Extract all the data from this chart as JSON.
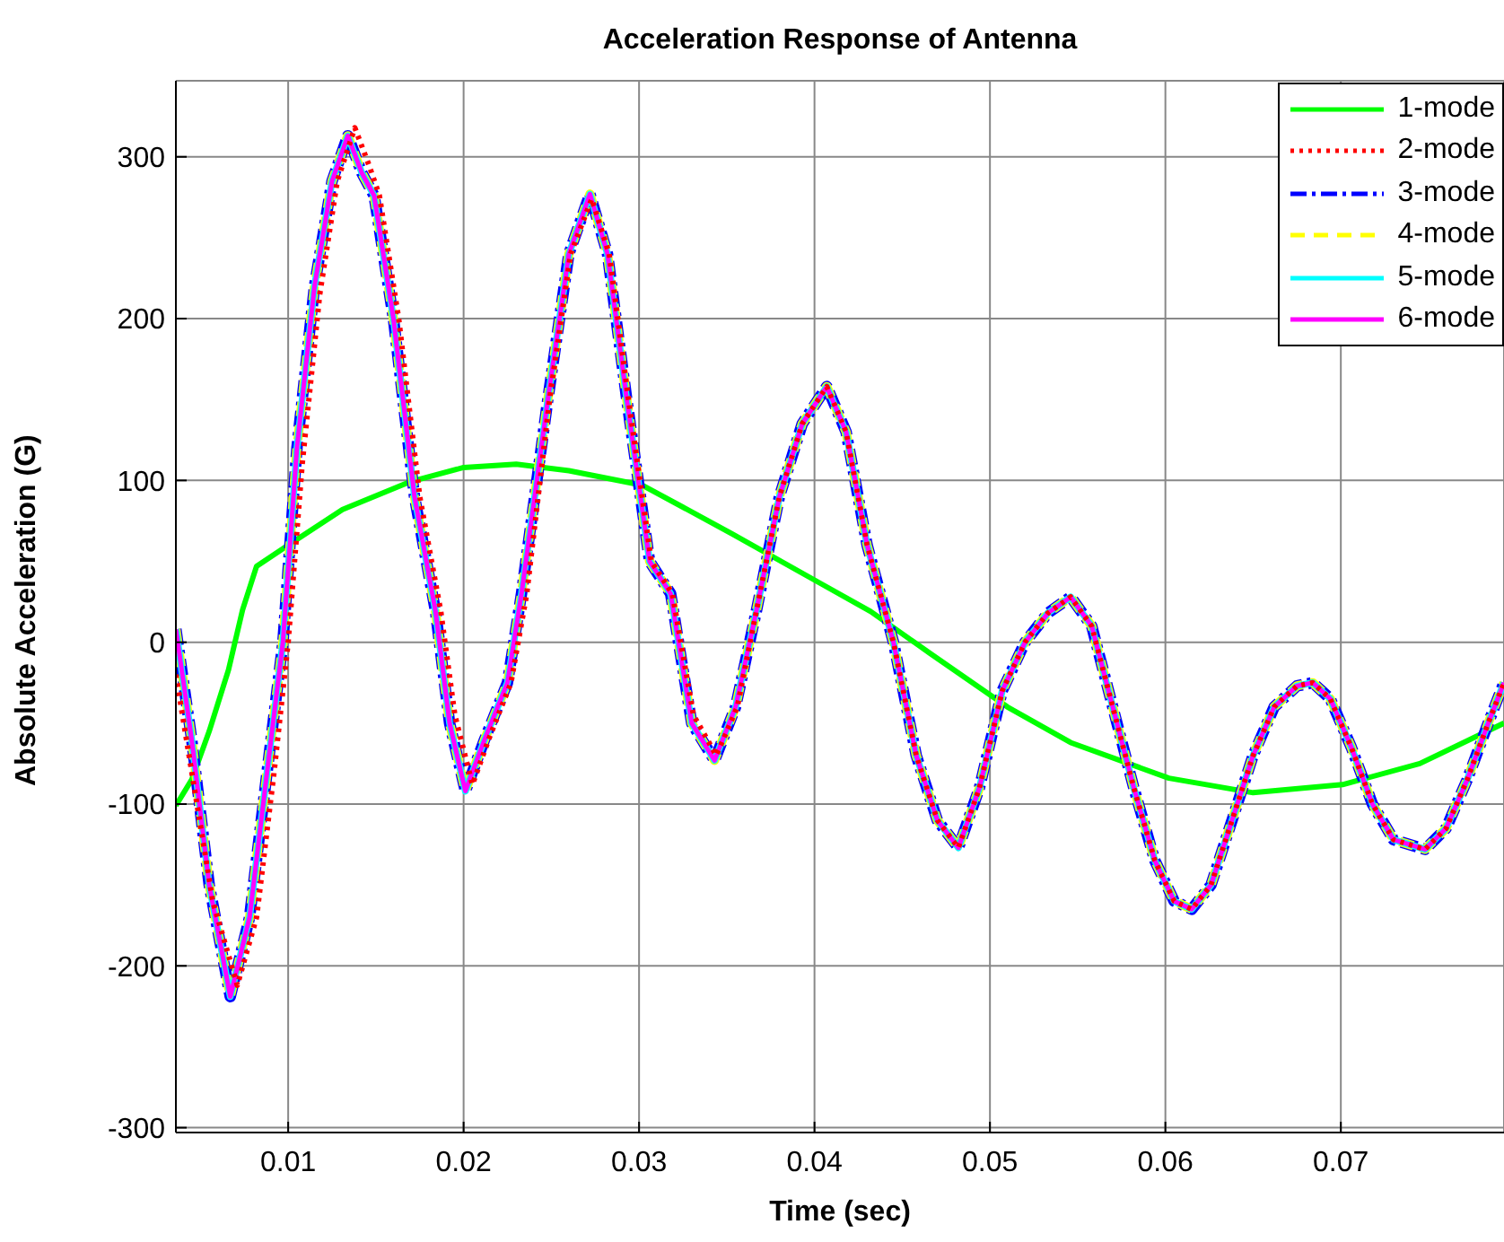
{
  "chart_data": {
    "type": "line",
    "title": "Acceleration Response of Antenna",
    "xlabel": "Time (sec)",
    "ylabel": "Absolute Acceleration (G)",
    "xlim": [
      0.0036,
      0.0793
    ],
    "xticks": [
      0.01,
      0.02,
      0.03,
      0.04,
      0.05,
      0.06,
      0.07
    ],
    "ylim": [
      -303,
      347
    ],
    "yticks": [
      -300,
      -200,
      -100,
      0,
      100,
      200,
      300
    ],
    "grid": true,
    "legend": "top right",
    "marker": "none",
    "series": [
      {
        "name": "1-mode",
        "color": "#00ff00",
        "line_style": "solid",
        "x": [
          0.0036,
          0.0045,
          0.0055,
          0.0066,
          0.0074,
          0.0082,
          0.01,
          0.0131,
          0.0169,
          0.02,
          0.023,
          0.026,
          0.0302,
          0.0353,
          0.0404,
          0.0432,
          0.0466,
          0.051,
          0.0546,
          0.0602,
          0.065,
          0.0701,
          0.0745,
          0.0793
        ],
        "values": [
          -101,
          -85,
          -55,
          -17,
          20,
          47,
          60,
          82,
          99,
          108,
          110,
          106,
          97,
          67,
          36,
          19,
          -7,
          -40,
          -62,
          -84,
          -93,
          -88,
          -75,
          -50
        ]
      },
      {
        "name": "2-mode",
        "color": "#ff0000",
        "line_style": "dotted",
        "x": [
          0.0036,
          0.0045,
          0.0057,
          0.0071,
          0.0082,
          0.0092,
          0.01,
          0.0108,
          0.0118,
          0.0128,
          0.0138,
          0.0146,
          0.0152,
          0.0163,
          0.0175,
          0.0187,
          0.0195,
          0.0205,
          0.0215,
          0.0227,
          0.0236,
          0.0249,
          0.0261,
          0.0273,
          0.0283,
          0.0294,
          0.0307,
          0.0319,
          0.0331,
          0.0344,
          0.0356,
          0.0367,
          0.038,
          0.0393,
          0.0407,
          0.0418,
          0.043,
          0.0445,
          0.0458,
          0.047,
          0.0482,
          0.0494,
          0.0507,
          0.052,
          0.0533,
          0.0546,
          0.0558,
          0.057,
          0.0582,
          0.0594,
          0.0605,
          0.0615,
          0.0626,
          0.0638,
          0.065,
          0.0662,
          0.0675,
          0.0684,
          0.0694,
          0.0706,
          0.0718,
          0.073,
          0.0748,
          0.076,
          0.0772,
          0.0784,
          0.0793
        ],
        "values": [
          -20,
          -80,
          -160,
          -212,
          -170,
          -80,
          0,
          110,
          215,
          285,
          318,
          295,
          276,
          200,
          90,
          19,
          -45,
          -88,
          -58,
          -25,
          30,
          150,
          240,
          274,
          240,
          150,
          50,
          30,
          -45,
          -70,
          -40,
          20,
          90,
          135,
          158,
          130,
          60,
          0,
          -70,
          -110,
          -127,
          -90,
          -30,
          0,
          18,
          28,
          10,
          -40,
          -90,
          -135,
          -160,
          -165,
          -150,
          -110,
          -70,
          -40,
          -27,
          -25,
          -35,
          -65,
          -100,
          -122,
          -128,
          -115,
          -85,
          -50,
          -25
        ]
      },
      {
        "name": "3-mode",
        "color": "#0000ff",
        "line_style": "dashdot",
        "x": [
          0.0036,
          0.0045,
          0.0055,
          0.0067,
          0.0078,
          0.0088,
          0.0097,
          0.0105,
          0.0115,
          0.0125,
          0.0134,
          0.0142,
          0.0149,
          0.016,
          0.0172,
          0.0184,
          0.0192,
          0.0201,
          0.0212,
          0.0225,
          0.0233,
          0.0248,
          0.026,
          0.0272,
          0.0282,
          0.0293,
          0.0306,
          0.0318,
          0.033,
          0.0343,
          0.0355,
          0.0367,
          0.038,
          0.0393,
          0.0407,
          0.0418,
          0.043,
          0.0445,
          0.0458,
          0.047,
          0.0482,
          0.0494,
          0.0507,
          0.052,
          0.0533,
          0.0546,
          0.0558,
          0.057,
          0.0582,
          0.0594,
          0.0605,
          0.0615,
          0.0626,
          0.0638,
          0.065,
          0.0662,
          0.0675,
          0.0684,
          0.0694,
          0.0706,
          0.0718,
          0.073,
          0.0748,
          0.076,
          0.0772,
          0.0784,
          0.0793
        ],
        "values": [
          8,
          -60,
          -150,
          -219,
          -170,
          -80,
          0,
          120,
          220,
          285,
          313,
          290,
          276,
          200,
          90,
          19,
          -50,
          -92,
          -60,
          -25,
          30,
          150,
          240,
          277,
          240,
          150,
          50,
          30,
          -50,
          -73,
          -40,
          20,
          90,
          135,
          158,
          130,
          60,
          0,
          -70,
          -110,
          -127,
          -90,
          -30,
          0,
          18,
          28,
          10,
          -40,
          -90,
          -135,
          -160,
          -165,
          -150,
          -110,
          -70,
          -40,
          -27,
          -25,
          -35,
          -65,
          -100,
          -122,
          -128,
          -115,
          -85,
          -50,
          -25
        ]
      },
      {
        "name": "4-mode",
        "color": "#ffff00",
        "line_style": "dashed",
        "x": [
          0.0036,
          0.0045,
          0.0055,
          0.0067,
          0.0078,
          0.0088,
          0.0097,
          0.0105,
          0.0115,
          0.0125,
          0.0134,
          0.0142,
          0.0149,
          0.016,
          0.0172,
          0.0184,
          0.0192,
          0.0201,
          0.0212,
          0.0225,
          0.0233,
          0.0248,
          0.026,
          0.0272,
          0.0282,
          0.0293,
          0.0306,
          0.0318,
          0.033,
          0.0343,
          0.0355,
          0.0367,
          0.038,
          0.0393,
          0.0407,
          0.0418,
          0.043,
          0.0445,
          0.0458,
          0.047,
          0.0482,
          0.0494,
          0.0507,
          0.052,
          0.0533,
          0.0546,
          0.0558,
          0.057,
          0.0582,
          0.0594,
          0.0605,
          0.0615,
          0.0626,
          0.0638,
          0.065,
          0.0662,
          0.0675,
          0.0684,
          0.0694,
          0.0706,
          0.0718,
          0.073,
          0.0748,
          0.076,
          0.0772,
          0.0784,
          0.0793
        ],
        "values": [
          8,
          -60,
          -150,
          -219,
          -170,
          -80,
          0,
          120,
          220,
          285,
          313,
          290,
          276,
          200,
          90,
          19,
          -50,
          -92,
          -60,
          -25,
          30,
          150,
          240,
          277,
          240,
          150,
          50,
          30,
          -50,
          -73,
          -40,
          20,
          90,
          135,
          158,
          130,
          60,
          0,
          -70,
          -110,
          -127,
          -90,
          -30,
          0,
          18,
          28,
          10,
          -40,
          -90,
          -135,
          -160,
          -165,
          -150,
          -110,
          -70,
          -40,
          -27,
          -25,
          -35,
          -65,
          -100,
          -122,
          -128,
          -115,
          -85,
          -50,
          -25
        ]
      },
      {
        "name": "5-mode",
        "color": "#00ffff",
        "line_style": "solid",
        "x": [
          0.0036,
          0.0045,
          0.0055,
          0.0067,
          0.0078,
          0.0088,
          0.0097,
          0.0105,
          0.0115,
          0.0125,
          0.0134,
          0.0142,
          0.0149,
          0.016,
          0.0172,
          0.0184,
          0.0192,
          0.0201,
          0.0212,
          0.0225,
          0.0233,
          0.0248,
          0.026,
          0.0272,
          0.0282,
          0.0293,
          0.0306,
          0.0318,
          0.033,
          0.0343,
          0.0355,
          0.0367,
          0.038,
          0.0393,
          0.0407,
          0.0418,
          0.043,
          0.0445,
          0.0458,
          0.047,
          0.0482,
          0.0494,
          0.0507,
          0.052,
          0.0533,
          0.0546,
          0.0558,
          0.057,
          0.0582,
          0.0594,
          0.0605,
          0.0615,
          0.0626,
          0.0638,
          0.065,
          0.0662,
          0.0675,
          0.0684,
          0.0694,
          0.0706,
          0.0718,
          0.073,
          0.0748,
          0.076,
          0.0772,
          0.0784,
          0.0793
        ],
        "values": [
          8,
          -60,
          -150,
          -219,
          -170,
          -80,
          0,
          120,
          220,
          285,
          313,
          290,
          276,
          200,
          90,
          19,
          -50,
          -92,
          -60,
          -25,
          30,
          150,
          240,
          277,
          240,
          150,
          50,
          30,
          -50,
          -73,
          -40,
          20,
          90,
          135,
          158,
          130,
          60,
          0,
          -70,
          -110,
          -127,
          -90,
          -30,
          0,
          18,
          28,
          10,
          -40,
          -90,
          -135,
          -160,
          -165,
          -150,
          -110,
          -70,
          -40,
          -27,
          -25,
          -35,
          -65,
          -100,
          -122,
          -128,
          -115,
          -85,
          -50,
          -25
        ]
      },
      {
        "name": "6-mode",
        "color": "#ff00ff",
        "line_style": "solid",
        "x": [
          0.0036,
          0.0045,
          0.0055,
          0.0067,
          0.0078,
          0.0088,
          0.0097,
          0.0105,
          0.0115,
          0.0125,
          0.0134,
          0.0142,
          0.0149,
          0.016,
          0.0172,
          0.0184,
          0.0192,
          0.0201,
          0.0212,
          0.0225,
          0.0233,
          0.0248,
          0.026,
          0.0272,
          0.0282,
          0.0293,
          0.0306,
          0.0318,
          0.033,
          0.0343,
          0.0355,
          0.0367,
          0.038,
          0.0393,
          0.0407,
          0.0418,
          0.043,
          0.0445,
          0.0458,
          0.047,
          0.0482,
          0.0494,
          0.0507,
          0.052,
          0.0533,
          0.0546,
          0.0558,
          0.057,
          0.0582,
          0.0594,
          0.0605,
          0.0615,
          0.0626,
          0.0638,
          0.065,
          0.0662,
          0.0675,
          0.0684,
          0.0694,
          0.0706,
          0.0718,
          0.073,
          0.0748,
          0.076,
          0.0772,
          0.0784,
          0.0793
        ],
        "values": [
          8,
          -60,
          -150,
          -219,
          -170,
          -80,
          0,
          120,
          220,
          285,
          313,
          290,
          276,
          200,
          90,
          19,
          -50,
          -92,
          -60,
          -25,
          30,
          150,
          240,
          277,
          240,
          150,
          50,
          30,
          -50,
          -73,
          -40,
          20,
          90,
          135,
          158,
          130,
          60,
          0,
          -70,
          -110,
          -127,
          -90,
          -30,
          0,
          18,
          28,
          10,
          -40,
          -90,
          -135,
          -160,
          -165,
          -150,
          -110,
          -70,
          -40,
          -27,
          -25,
          -35,
          -65,
          -100,
          -122,
          -128,
          -115,
          -85,
          -50,
          -25
        ]
      }
    ]
  }
}
